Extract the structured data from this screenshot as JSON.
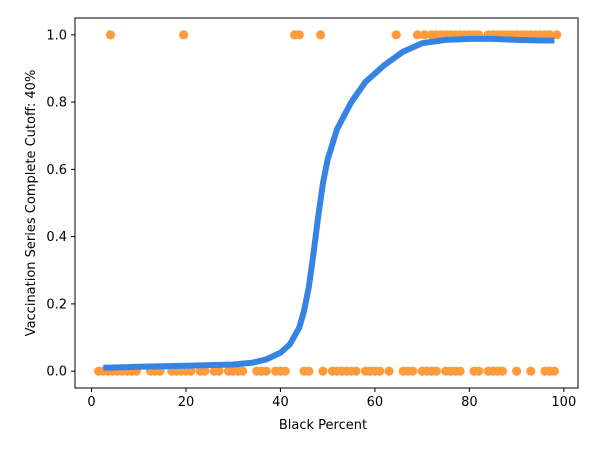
{
  "chart_data": {
    "type": "scatter",
    "xlabel": "Black Percent",
    "ylabel": "Vaccination Series Complete Cutoff: 40%",
    "xlim": [
      -3.5,
      103
    ],
    "ylim": [
      -0.05,
      1.05
    ],
    "x_ticks": [
      0,
      20,
      40,
      60,
      80,
      100
    ],
    "y_ticks": [
      0.0,
      0.2,
      0.4,
      0.6,
      0.8,
      1.0
    ],
    "x_tick_labels": [
      "0",
      "20",
      "40",
      "60",
      "80",
      "100"
    ],
    "y_tick_labels": [
      "0.0",
      "0.2",
      "0.4",
      "0.6",
      "0.8",
      "1.0"
    ],
    "grid": false,
    "colors": {
      "points": "#ff9a3d",
      "curve": "#3584e4"
    },
    "series": [
      {
        "type": "scatter",
        "points": [
          [
            1.5,
            0
          ],
          [
            2.5,
            0
          ],
          [
            3.5,
            0
          ],
          [
            4.5,
            0
          ],
          [
            5.5,
            0
          ],
          [
            6.5,
            0
          ],
          [
            7.5,
            0
          ],
          [
            8.5,
            0
          ],
          [
            9.5,
            0
          ],
          [
            12.5,
            0
          ],
          [
            13.5,
            0
          ],
          [
            14.5,
            0
          ],
          [
            17,
            0
          ],
          [
            18,
            0
          ],
          [
            19,
            0
          ],
          [
            20,
            0
          ],
          [
            21,
            0
          ],
          [
            23,
            0
          ],
          [
            24,
            0
          ],
          [
            26,
            0
          ],
          [
            27,
            0
          ],
          [
            29,
            0
          ],
          [
            30,
            0
          ],
          [
            31,
            0
          ],
          [
            32,
            0
          ],
          [
            35,
            0
          ],
          [
            36,
            0
          ],
          [
            37,
            0
          ],
          [
            39,
            0
          ],
          [
            40,
            0
          ],
          [
            41,
            0
          ],
          [
            45,
            0
          ],
          [
            46,
            0
          ],
          [
            49,
            0
          ],
          [
            51,
            0
          ],
          [
            52,
            0
          ],
          [
            53,
            0
          ],
          [
            54,
            0
          ],
          [
            55,
            0
          ],
          [
            56,
            0
          ],
          [
            58,
            0
          ],
          [
            59,
            0
          ],
          [
            60,
            0
          ],
          [
            61,
            0
          ],
          [
            63,
            0
          ],
          [
            66,
            0
          ],
          [
            67,
            0
          ],
          [
            68,
            0
          ],
          [
            70,
            0
          ],
          [
            71,
            0
          ],
          [
            72,
            0
          ],
          [
            73,
            0
          ],
          [
            75,
            0
          ],
          [
            76,
            0
          ],
          [
            77,
            0
          ],
          [
            78,
            0
          ],
          [
            81,
            0
          ],
          [
            82,
            0
          ],
          [
            84,
            0
          ],
          [
            85,
            0
          ],
          [
            86,
            0
          ],
          [
            87,
            0
          ],
          [
            90,
            0
          ],
          [
            93,
            0
          ],
          [
            96,
            0
          ],
          [
            97,
            0
          ],
          [
            98,
            0
          ],
          [
            4,
            1
          ],
          [
            19.5,
            1
          ],
          [
            43,
            1
          ],
          [
            44,
            1
          ],
          [
            48.5,
            1
          ],
          [
            64.5,
            1
          ],
          [
            69,
            1
          ],
          [
            70.5,
            1
          ],
          [
            72,
            1
          ],
          [
            73,
            1
          ],
          [
            74,
            1
          ],
          [
            75,
            1
          ],
          [
            76,
            1
          ],
          [
            77,
            1
          ],
          [
            78,
            1
          ],
          [
            79,
            1
          ],
          [
            80,
            1
          ],
          [
            81,
            1
          ],
          [
            82,
            1
          ],
          [
            84,
            1
          ],
          [
            85,
            1
          ],
          [
            86,
            1
          ],
          [
            87,
            1
          ],
          [
            88,
            1
          ],
          [
            89,
            1
          ],
          [
            90,
            1
          ],
          [
            91,
            1
          ],
          [
            92,
            1
          ],
          [
            93,
            1
          ],
          [
            94,
            1
          ],
          [
            95,
            1
          ],
          [
            96,
            1
          ],
          [
            97,
            1
          ],
          [
            98.5,
            1
          ]
        ]
      },
      {
        "type": "line",
        "points": [
          [
            2.5,
            0.01
          ],
          [
            10,
            0.013
          ],
          [
            20,
            0.016
          ],
          [
            30,
            0.02
          ],
          [
            34,
            0.025
          ],
          [
            37,
            0.035
          ],
          [
            40,
            0.055
          ],
          [
            42,
            0.08
          ],
          [
            44,
            0.13
          ],
          [
            45,
            0.18
          ],
          [
            46,
            0.25
          ],
          [
            47,
            0.35
          ],
          [
            48,
            0.46
          ],
          [
            49,
            0.56
          ],
          [
            50,
            0.63
          ],
          [
            52,
            0.72
          ],
          [
            55,
            0.8
          ],
          [
            58,
            0.86
          ],
          [
            62,
            0.91
          ],
          [
            66,
            0.95
          ],
          [
            70,
            0.975
          ],
          [
            75,
            0.985
          ],
          [
            80,
            0.988
          ],
          [
            85,
            0.988
          ],
          [
            90,
            0.985
          ],
          [
            95,
            0.983
          ],
          [
            98,
            0.983
          ]
        ]
      }
    ]
  }
}
